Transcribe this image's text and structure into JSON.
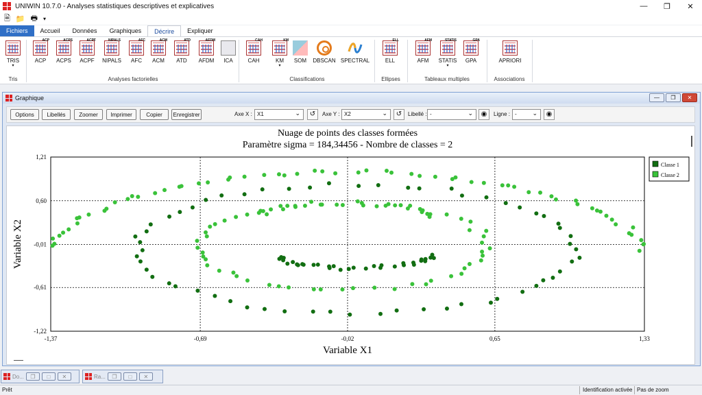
{
  "window": {
    "title": "UNIWIN 10.7.0 - Analyses statistiques descriptives et explicatives"
  },
  "ribbon_tabs": [
    {
      "label": "Fichiers",
      "active": false,
      "file": true
    },
    {
      "label": "Accueil",
      "active": false
    },
    {
      "label": "Données",
      "active": false
    },
    {
      "label": "Graphiques",
      "active": false
    },
    {
      "label": "Décrire",
      "active": true
    },
    {
      "label": "Expliquer",
      "active": false
    }
  ],
  "ribbon": {
    "buttons": [
      {
        "label": "TRIS",
        "icon": "tris-icon",
        "dropdown": true
      },
      {
        "label": "ACP",
        "icon": "acp-icon",
        "badge": "ACP"
      },
      {
        "label": "ACPS",
        "icon": "acps-icon",
        "badge": "ACPS"
      },
      {
        "label": "ACPF",
        "icon": "acpf-icon",
        "badge": "ACPF"
      },
      {
        "label": "NIPALS",
        "icon": "nipals-icon",
        "badge": "NIPALS"
      },
      {
        "label": "AFC",
        "icon": "afc-icon",
        "badge": "AFC"
      },
      {
        "label": "ACM",
        "icon": "acm-icon",
        "badge": "ACM"
      },
      {
        "label": "ATD",
        "icon": "atd-icon",
        "badge": "ATD"
      },
      {
        "label": "AFDM",
        "icon": "afdm-icon",
        "badge": "AFDM"
      },
      {
        "label": "ICA",
        "icon": "ica-icon"
      },
      {
        "label": "CAH",
        "icon": "cah-icon",
        "badge": "CAH"
      },
      {
        "label": "KM",
        "icon": "km-icon",
        "dropdown": true,
        "badge": "KM"
      },
      {
        "label": "SOM",
        "icon": "som-icon"
      },
      {
        "label": "DBSCAN",
        "icon": "dbscan-icon"
      },
      {
        "label": "SPECTRAL",
        "icon": "spectral-icon"
      },
      {
        "label": "ELL",
        "icon": "ell-icon",
        "badge": "ELL"
      },
      {
        "label": "AFM",
        "icon": "afm-icon",
        "badge": "AFM"
      },
      {
        "label": "STATIS",
        "icon": "statis-icon",
        "dropdown": true,
        "badge": "STATIS"
      },
      {
        "label": "GPA",
        "icon": "gpa-icon",
        "badge": "GPA"
      },
      {
        "label": "APRIORI",
        "icon": "apriori-icon"
      }
    ],
    "groups": [
      "Tris",
      "Analyses factorielles",
      "Classifications",
      "Ellipses",
      "Tableaux multiples",
      "Associations"
    ]
  },
  "child": {
    "title": "Graphique",
    "toolbar": {
      "buttons": [
        "Options",
        "Libellés",
        "Zoomer",
        "Imprimer",
        "Copier",
        "Enregistrer"
      ],
      "axe_x_label": "Axe X :",
      "axe_x_value": "X1",
      "axe_y_label": "Axe Y :",
      "axe_y_value": "X2",
      "libelle_label": "Libellé :",
      "libelle_value": "-",
      "ligne_label": "Ligne :",
      "ligne_value": "-"
    }
  },
  "mdi_tabs": [
    "Do...",
    "Ra..."
  ],
  "status": {
    "left": "Prêt",
    "ident": "Identification activée",
    "zoom": "Pas de zoom"
  },
  "colors": {
    "classe1": "#126e12",
    "classe2": "#3ac23a",
    "accent": "#2f6fc6"
  },
  "chart_data": {
    "type": "scatter",
    "title": "Nuage de points des classes formées",
    "subtitle": "Paramètre sigma = 184,34456 - Nombre de classes = 2",
    "xlabel": "Variable X1",
    "ylabel": "Variable X2",
    "xlim": [
      -1.37,
      1.33
    ],
    "ylim": [
      -1.22,
      1.21
    ],
    "xticks": [
      "-1,37",
      "-0,69",
      "-0,02",
      "0,65",
      "1,33"
    ],
    "yticks": [
      "1,21",
      "0,60",
      "-0,01",
      "-0,61",
      "-1,22"
    ],
    "grid": true,
    "legend_position": "top-right",
    "series": [
      {
        "name": "Classe 1",
        "color": "#126e12",
        "rings": [
          {
            "rx": 1.0,
            "ry": 0.9,
            "n": 60,
            "cx": 0.02,
            "cy": -0.08
          },
          {
            "rx": 0.33,
            "ry": 0.17,
            "n": 34,
            "cx": 0.02,
            "cy": -0.17,
            "half": "lower"
          }
        ]
      },
      {
        "name": "Classe 2",
        "color": "#3ac23a",
        "rings": [
          {
            "rx": 1.36,
            "ry": 1.2,
            "n": 70,
            "cx": -0.02,
            "cy": -0.2,
            "half": "upper"
          },
          {
            "rx": 0.66,
            "ry": 0.6,
            "n": 56,
            "cx": -0.04,
            "cy": -0.04
          },
          {
            "rx": 0.38,
            "ry": 0.17,
            "n": 20,
            "cx": -0.02,
            "cy": 0.4,
            "half": "upper"
          }
        ]
      }
    ]
  }
}
